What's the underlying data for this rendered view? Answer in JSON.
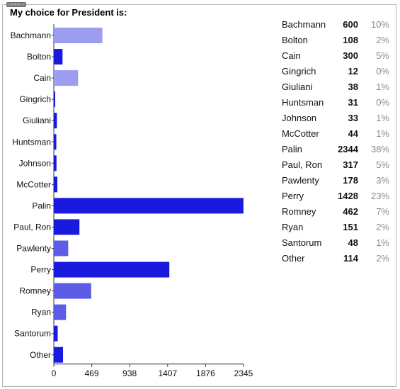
{
  "poll": {
    "title": "My choice for President is:"
  },
  "colors": {
    "bar_dark": "#1a1adf",
    "bar_mid": "#5c5ce6",
    "bar_light": "#9c9cf0",
    "axis": "#333333"
  },
  "chart_data": {
    "type": "bar",
    "orientation": "horizontal",
    "title": "My choice for President is:",
    "categories": [
      "Bachmann",
      "Bolton",
      "Cain",
      "Gingrich",
      "Giuliani",
      "Huntsman",
      "Johnson",
      "McCotter",
      "Palin",
      "Paul, Ron",
      "Pawlenty",
      "Perry",
      "Romney",
      "Ryan",
      "Santorum",
      "Other"
    ],
    "values": [
      600,
      108,
      300,
      12,
      38,
      31,
      33,
      44,
      2344,
      317,
      178,
      1428,
      462,
      151,
      48,
      114
    ],
    "xlim": [
      0,
      2345
    ],
    "xticks": [
      "0",
      "469",
      "938",
      "1407",
      "1876",
      "2345"
    ],
    "grid": false,
    "legend": "none"
  },
  "results": [
    {
      "name": "Bachmann",
      "count": "600",
      "pct": "10%"
    },
    {
      "name": "Bolton",
      "count": "108",
      "pct": "2%"
    },
    {
      "name": "Cain",
      "count": "300",
      "pct": "5%"
    },
    {
      "name": "Gingrich",
      "count": "12",
      "pct": "0%"
    },
    {
      "name": "Giuliani",
      "count": "38",
      "pct": "1%"
    },
    {
      "name": "Huntsman",
      "count": "31",
      "pct": "0%"
    },
    {
      "name": "Johnson",
      "count": "33",
      "pct": "1%"
    },
    {
      "name": "McCotter",
      "count": "44",
      "pct": "1%"
    },
    {
      "name": "Palin",
      "count": "2344",
      "pct": "38%"
    },
    {
      "name": "Paul, Ron",
      "count": "317",
      "pct": "5%"
    },
    {
      "name": "Pawlenty",
      "count": "178",
      "pct": "3%"
    },
    {
      "name": "Perry",
      "count": "1428",
      "pct": "23%"
    },
    {
      "name": "Romney",
      "count": "462",
      "pct": "7%"
    },
    {
      "name": "Ryan",
      "count": "151",
      "pct": "2%"
    },
    {
      "name": "Santorum",
      "count": "48",
      "pct": "1%"
    },
    {
      "name": "Other",
      "count": "114",
      "pct": "2%"
    }
  ]
}
